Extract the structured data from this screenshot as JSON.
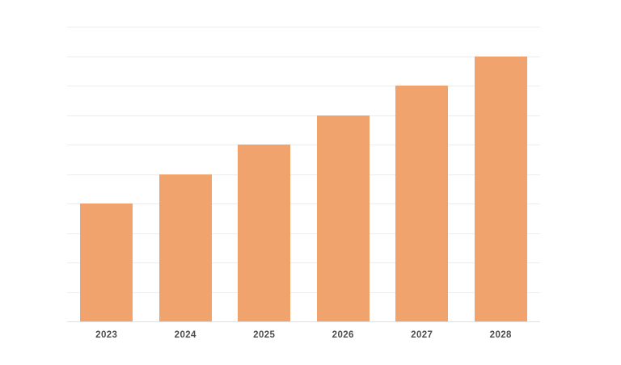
{
  "chart_data": {
    "type": "bar",
    "title": "",
    "xlabel": "",
    "ylabel": "",
    "categories": [
      "2023",
      "2024",
      "2025",
      "2026",
      "2027",
      "2028"
    ],
    "values": [
      4,
      5,
      6,
      7,
      8,
      9
    ],
    "ylim": [
      0,
      10
    ],
    "gridline_intervals": 10,
    "grid": "horizontal-only",
    "y_tick_labels_visible": false,
    "legend": "none",
    "colors": {
      "bar": "#F0A36D",
      "gridline": "#EDEDED",
      "baseline": "#E0E0E0",
      "tick_label": "#4D4D4D",
      "background": "#FFFFFF"
    }
  }
}
